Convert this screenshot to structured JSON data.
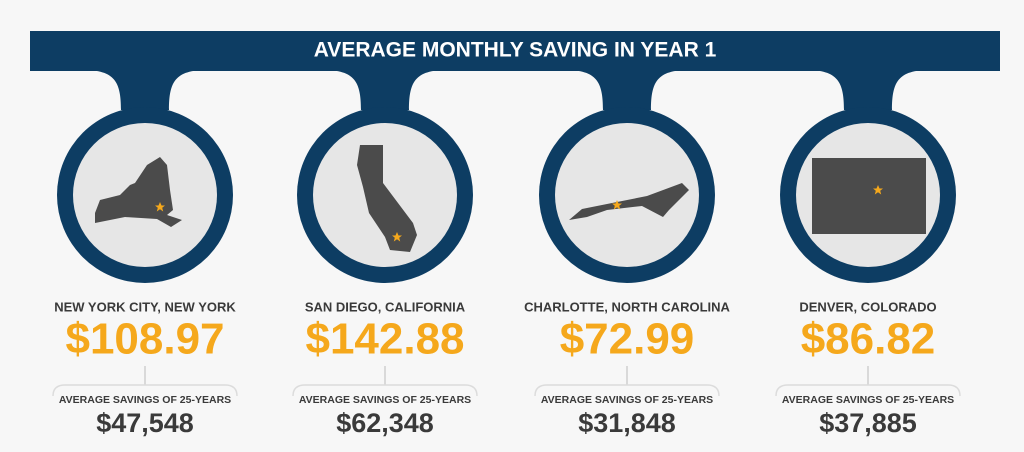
{
  "header": {
    "title": "AVERAGE MONTHLY SAVING IN YEAR 1"
  },
  "cities": [
    {
      "name": "NEW YORK CITY, NEW YORK",
      "monthly": "$108.97",
      "label": "AVERAGE SAVINGS OF 25-YEARS",
      "total": "$47,548"
    },
    {
      "name": "SAN DIEGO, CALIFORNIA",
      "monthly": "$142.88",
      "label": "AVERAGE SAVINGS OF 25-YEARS",
      "total": "$62,348"
    },
    {
      "name": "CHARLOTTE, NORTH CAROLINA",
      "monthly": "$72.99",
      "label": "AVERAGE SAVINGS OF 25-YEARS",
      "total": "$31,848"
    },
    {
      "name": "DENVER, COLORADO",
      "monthly": "$86.82",
      "label": "AVERAGE SAVINGS OF 25-YEARS",
      "total": "$37,885"
    }
  ]
}
